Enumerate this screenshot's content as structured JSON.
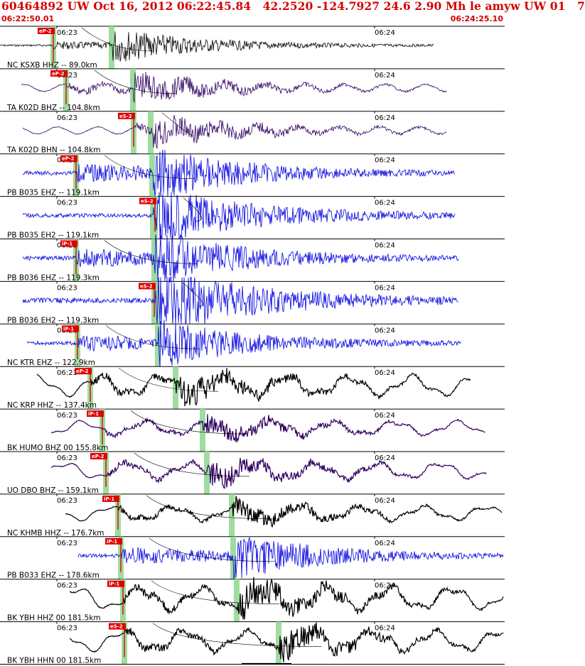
{
  "header": {
    "title": "60464892 UW Oct 16, 2012 06:22:45.84   42.2520 -124.7927 24.6 2.90 Mh le amyw UW 01   7",
    "start_time": "06:22:50.01",
    "end_time": "06:24:25.10"
  },
  "colors": {
    "header": "#d40000",
    "trace_black": "#000000",
    "trace_blue": "#0000e0",
    "trace_purple": "#300060",
    "pick": "#e00000",
    "window": "#9fdc9f"
  },
  "chart_data": {
    "type": "line",
    "time_window": [
      "06:22:50.01",
      "06:24:25.10"
    ],
    "tick_labels": [
      "06:23",
      "06:24"
    ],
    "traces": [
      {
        "label": "NC KSXB HHZ -- 89.0km",
        "color": "#000000",
        "pick": "eP-2",
        "gap": false
      },
      {
        "label": "TA K02D BHZ -- 104.8km",
        "color": "#300060",
        "pick": "eP-2",
        "gap": false
      },
      {
        "label": "TA K02D BHN -- 104.8km",
        "color": "#300060",
        "pick": "eS-2",
        "gap": false
      },
      {
        "label": "PB B035 EHZ -- 119.1km",
        "color": "#0000e0",
        "pick": "eP-2",
        "gap": false
      },
      {
        "label": "PB B035 EH2 -- 119.1km",
        "color": "#0000e0",
        "pick": "eS-2",
        "gap": false
      },
      {
        "label": "PB B036 EHZ -- 119.3km",
        "color": "#0000e0",
        "pick": "iP-1",
        "gap": false
      },
      {
        "label": "PB B036 EH2 -- 119.3km",
        "color": "#0000e0",
        "pick": "eS-2",
        "gap": false
      },
      {
        "label": "NC KTR EHZ -- 122.9km",
        "color": "#0000e0",
        "pick": "iP-1",
        "gap": false
      },
      {
        "label": "NC KRP HHZ -- 137.4km",
        "color": "#000000",
        "pick": "eP-2",
        "gap": false
      },
      {
        "label": "BK HUMO BHZ 00 155.8km",
        "color": "#300060",
        "pick": "iP-1",
        "gap": false
      },
      {
        "label": "UO DBO BHZ -- 159.1km",
        "color": "#300060",
        "pick": "eP-2",
        "gap": false
      },
      {
        "label": "NC KHMB HHZ -- 176.7km",
        "color": "#000000",
        "pick": "iP-1",
        "gap": false
      },
      {
        "label": "PB B033 EHZ -- 178.6km",
        "color": "#0000e0",
        "pick": "iP-1",
        "gap": false
      },
      {
        "label": "BK YBH HHZ 00 181.5km",
        "color": "#000000",
        "pick": "iP-1",
        "gap": false
      },
      {
        "label": "BK YBH HHN 00 181.5km",
        "color": "#000000",
        "pick": "eS-2",
        "gap": true
      }
    ]
  }
}
